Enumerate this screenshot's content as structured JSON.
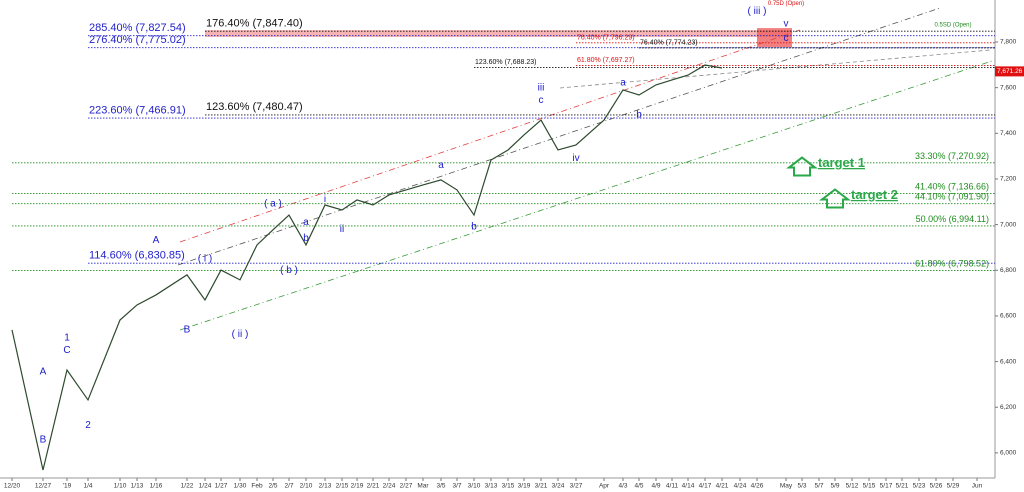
{
  "chart_data": {
    "type": "line",
    "categories": [
      "12/20",
      "12/27",
      "'19",
      "1/4",
      "1/10",
      "1/13",
      "1/16",
      "1/22",
      "1/24",
      "1/27",
      "1/30",
      "Feb",
      "2/5",
      "2/7",
      "2/10",
      "2/13",
      "2/15",
      "2/19",
      "2/21",
      "2/24",
      "2/27",
      "Mar",
      "3/5",
      "3/7",
      "3/10",
      "3/13",
      "3/15",
      "3/19",
      "3/21",
      "3/24",
      "3/27",
      "Apr",
      "4/3",
      "4/5",
      "4/9",
      "4/11",
      "4/14",
      "4/17",
      "4/21",
      "4/24",
      "4/26",
      "May",
      "5/3",
      "5/7",
      "5/9",
      "5/12",
      "5/15",
      "5/17",
      "5/21",
      "5/23",
      "5/26",
      "5/29",
      "Jun"
    ],
    "series": [
      {
        "color": "#2e4a2e",
        "values": [
          6539,
          5925,
          6363,
          6232,
          6582,
          6648,
          6692,
          6780,
          6670,
          6801,
          6758,
          6911,
          6977,
          7042,
          6911,
          7086,
          7064,
          7108,
          7086,
          7130,
          7152,
          7174,
          7196,
          7152,
          7042,
          7283,
          7327,
          7393,
          7458,
          7327,
          7349,
          7458,
          7590,
          7568,
          7612,
          7634,
          7655,
          7699,
          7686,
          null,
          null,
          null,
          null,
          null,
          null,
          null,
          null,
          null,
          null,
          null,
          null,
          null,
          null
        ]
      }
    ],
    "ylim": [
      5890,
      7984
    ],
    "yticks": [
      {
        "value": 6000,
        "label": "6,000"
      },
      {
        "value": 6200,
        "label": "6,200"
      },
      {
        "value": 6400,
        "label": "6,400"
      },
      {
        "value": 6600,
        "label": "6,600"
      },
      {
        "value": 6800,
        "label": "6,800"
      },
      {
        "value": 7000,
        "label": "7,000"
      },
      {
        "value": 7200,
        "label": "7,200"
      },
      {
        "value": 7400,
        "label": "7,400"
      },
      {
        "value": 7600,
        "label": "7,600"
      },
      {
        "value": 7800,
        "label": "7,800"
      }
    ],
    "levels": [
      {
        "label": "285.40% (7,827.54)",
        "value": 7827.54,
        "color": "#2222cc",
        "from": "1/4",
        "side": "left"
      },
      {
        "label": "276.40% (7,775.02)",
        "value": 7775.02,
        "color": "#2222cc",
        "from": "1/4",
        "side": "left"
      },
      {
        "label": "176.40% (7,847.40)",
        "value": 7847.4,
        "color": "#111111",
        "from": "1/24",
        "side": "left"
      },
      {
        "label": "223.60% (7,466.91)",
        "value": 7466.91,
        "color": "#2222cc",
        "from": "1/4",
        "side": "left"
      },
      {
        "label": "123.60% (7,480.47)",
        "value": 7480.47,
        "color": "#111111",
        "from": "1/24",
        "side": "left"
      },
      {
        "label": "114.60% (6,830.85)",
        "value": 6830.85,
        "color": "#2222cc",
        "from": "1/4",
        "side": "left"
      },
      {
        "label": "33.30% (7,270.92)",
        "value": 7270.92,
        "color": "#1e8c1e",
        "from": "12/20",
        "side": "right"
      },
      {
        "label": "41.40% (7,136.66)",
        "value": 7136.66,
        "color": "#1e8c1e",
        "from": "12/20",
        "side": "right"
      },
      {
        "label": "44.10% (7,091.90)",
        "value": 7091.9,
        "color": "#1e8c1e",
        "from": "12/20",
        "side": "right"
      },
      {
        "label": "50.00% (6,994.11)",
        "value": 6994.11,
        "color": "#1e8c1e",
        "from": "12/20",
        "side": "right"
      },
      {
        "label": "61.80% (6,798.52)",
        "value": 6798.52,
        "color": "#1e8c1e",
        "from": "12/20",
        "side": "right"
      },
      {
        "label": "123.60% (7,688.23)",
        "value": 7688.23,
        "color": "#111111",
        "from": "3/10",
        "side": "left",
        "small": true
      },
      {
        "label": "61.80% (7,697.27)",
        "value": 7697.27,
        "color": "#dd1111",
        "from": "3/27",
        "side": "left",
        "small": true
      },
      {
        "label": "76.40% (7,796.29)",
        "value": 7796.29,
        "color": "#dd1111",
        "from": "3/27",
        "side": "left",
        "small": true
      },
      {
        "label": "76.40% (7,774.23)",
        "value": 7774.23,
        "color": "#111111",
        "from": "4/5",
        "side": "left",
        "small": true
      }
    ],
    "zones": [
      {
        "from": "1/24",
        "to": "May",
        "high": 7852,
        "low": 7822,
        "color": "#f4a0a0"
      },
      {
        "from": "4/26",
        "to": "May",
        "high": 7861,
        "low": 7778,
        "color": "#f06060"
      }
    ],
    "annotations": [
      {
        "text": "A",
        "x": "12/27",
        "y": 6354,
        "color": "#1a1acc"
      },
      {
        "text": "B",
        "x": "12/27",
        "y": 6057,
        "color": "#1a1acc"
      },
      {
        "text": "1",
        "x": "'19",
        "y": 6504,
        "color": "#1a1acc"
      },
      {
        "text": "C",
        "x": "'19",
        "y": 6450,
        "color": "#1a1acc"
      },
      {
        "text": "2",
        "x": "1/4",
        "y": 6120,
        "color": "#1a1acc"
      },
      {
        "text": "A",
        "x": "1/16",
        "y": 6930,
        "color": "#1a1acc"
      },
      {
        "text": "B",
        "x": "1/22",
        "y": 6540,
        "color": "#1a1acc"
      },
      {
        "text": "( i )",
        "x": "1/24",
        "y": 6850,
        "color": "#1a1acc"
      },
      {
        "text": "( ii )",
        "x": "1/30",
        "y": 6520,
        "color": "#1a1acc"
      },
      {
        "text": "( a )",
        "x": "2/5",
        "y": 7090,
        "color": "#1a1acc"
      },
      {
        "text": "( b )",
        "x": "2/7",
        "y": 6800,
        "color": "#1a1acc"
      },
      {
        "text": "a",
        "x": "2/10",
        "y": 7010,
        "color": "#1a1acc"
      },
      {
        "text": "b",
        "x": "2/10",
        "y": 6940,
        "color": "#1a1acc"
      },
      {
        "text": "i",
        "x": "2/13",
        "y": 7110,
        "color": "#1a1acc"
      },
      {
        "text": "ii",
        "x": "2/15",
        "y": 6980,
        "color": "#1a1acc"
      },
      {
        "text": "a",
        "x": "3/5",
        "y": 7260,
        "color": "#1a1acc"
      },
      {
        "text": "b",
        "x": "3/10",
        "y": 6990,
        "color": "#1a1acc"
      },
      {
        "text": "iii",
        "x": "3/21",
        "y": 7600,
        "color": "#1a1acc"
      },
      {
        "text": "c",
        "x": "3/21",
        "y": 7545,
        "color": "#1a1acc"
      },
      {
        "text": "iv",
        "x": "3/27",
        "y": 7290,
        "color": "#1a1acc"
      },
      {
        "text": "a",
        "x": "4/3",
        "y": 7620,
        "color": "#1a1acc"
      },
      {
        "text": "b",
        "x": "4/5",
        "y": 7480,
        "color": "#1a1acc"
      },
      {
        "text": "( iii )",
        "x": "4/26",
        "y": 7935,
        "color": "#1a1acc"
      },
      {
        "text": "v",
        "x": "May",
        "y": 7880,
        "color": "#1a1acc"
      },
      {
        "text": "c",
        "x": "May",
        "y": 7815,
        "color": "#1a1acc"
      },
      {
        "text": "0.75D (Open)",
        "x": "May",
        "y": 7970,
        "color": "#dd1111",
        "small": true
      },
      {
        "text": "0.5SD (Open)",
        "x": "5/29",
        "y": 7874,
        "color": "#1e8c1e",
        "small": true
      }
    ],
    "targets": [
      {
        "text": "target 1",
        "x": "5/3",
        "y": 7250,
        "color": "#2aa84a"
      },
      {
        "text": "target 2",
        "x": "5/9",
        "y": 7110,
        "color": "#2aa84a"
      }
    ],
    "last": {
      "value": 7671.26,
      "label": "7,671.26",
      "color": "#e01010"
    }
  }
}
